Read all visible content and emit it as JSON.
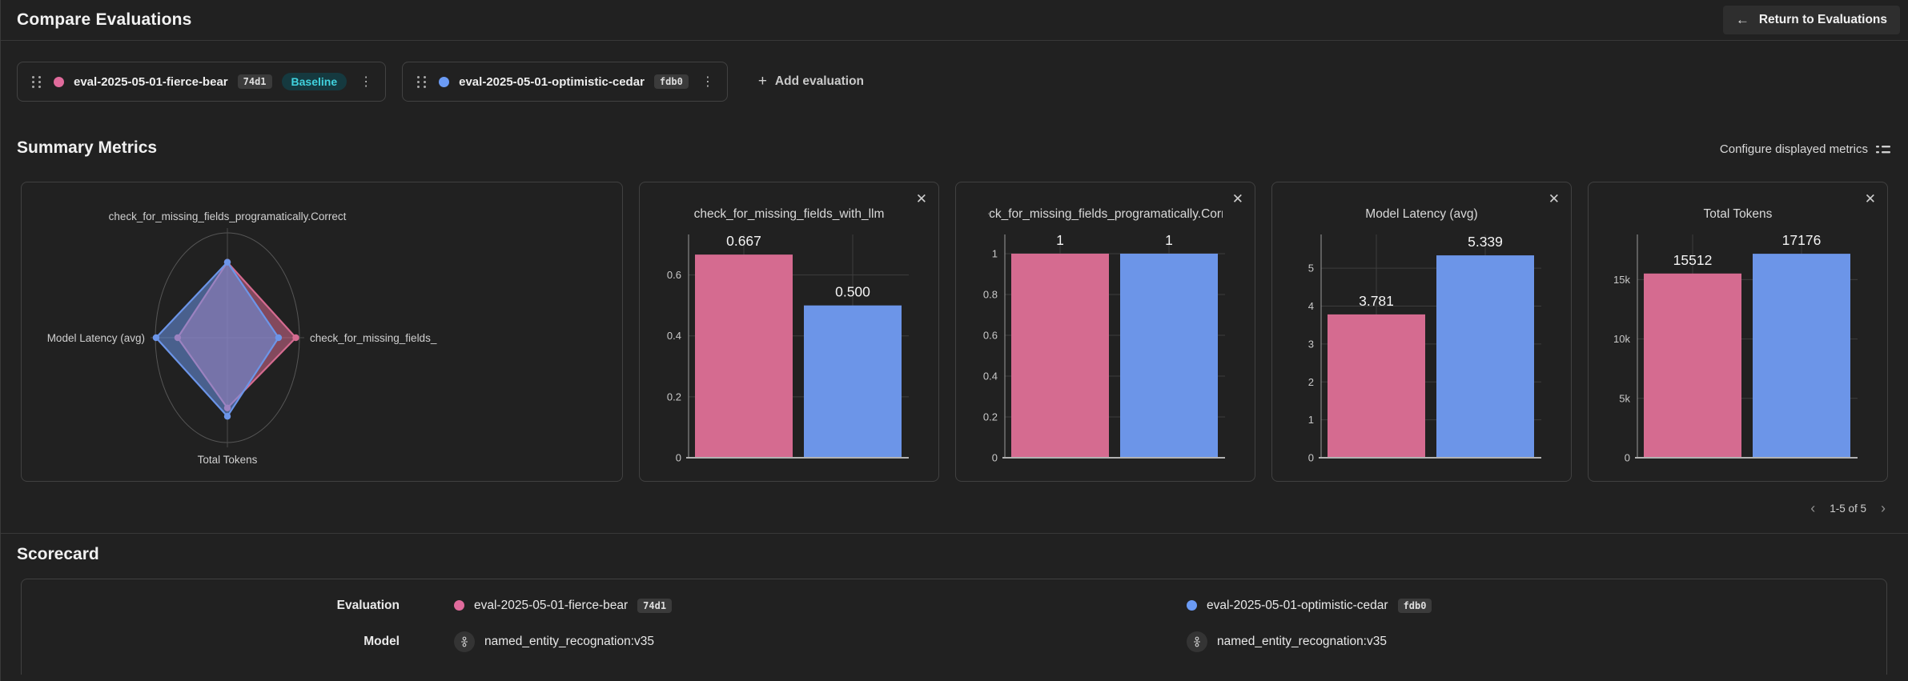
{
  "header": {
    "title": "Compare Evaluations",
    "return_label": "Return to Evaluations"
  },
  "icons": {
    "back_arrow": "←",
    "kebab": "⋮",
    "plus": "+",
    "close": "✕",
    "chevron_left": "‹",
    "chevron_right": "›"
  },
  "evaluations": [
    {
      "name": "eval-2025-05-01-fierce-bear",
      "hash": "74d1",
      "baseline": true,
      "color": "#E06B9C"
    },
    {
      "name": "eval-2025-05-01-optimistic-cedar",
      "hash": "fdb0",
      "baseline": false,
      "color": "#6B9BF5"
    }
  ],
  "baseline_label": "Baseline",
  "add_evaluation_label": "Add evaluation",
  "summary": {
    "title": "Summary Metrics",
    "configure_label": "Configure displayed metrics",
    "pagination": "1-5 of 5"
  },
  "scorecard": {
    "title": "Scorecard",
    "row_labels": {
      "evaluation": "Evaluation",
      "model": "Model"
    },
    "models": [
      "named_entity_recognation:v35",
      "named_entity_recognation:v35"
    ]
  },
  "chart_data": [
    {
      "type": "radar",
      "axes": [
        "check_for_missing_fields_programatically.Correct",
        "check_for_missing_fields_",
        "Total Tokens",
        "Model Latency (avg)"
      ],
      "axis_order": [
        "top",
        "right",
        "bottom",
        "left"
      ],
      "scale_note": "values are fraction of full radius (no numeric ticks shown)",
      "series": [
        {
          "name": "eval-2025-05-01-fierce-bear",
          "color": "#D56B90",
          "values": [
            0.72,
            0.95,
            0.67,
            0.69
          ]
        },
        {
          "name": "eval-2025-05-01-optimistic-cedar",
          "color": "#6C95E8",
          "values": [
            0.72,
            0.71,
            0.75,
            0.99
          ]
        }
      ]
    },
    {
      "type": "bar",
      "title": "check_for_missing_fields_with_llm",
      "categories": [
        "eval-2025-05-01-fierce-bear",
        "eval-2025-05-01-optimistic-cedar"
      ],
      "values": [
        0.667,
        0.5
      ],
      "value_labels": [
        "0.667",
        "0.500"
      ],
      "ticks": [
        {
          "v": 0,
          "label": "0"
        },
        {
          "v": 0.2,
          "label": "0.2"
        },
        {
          "v": 0.4,
          "label": "0.4"
        },
        {
          "v": 0.6,
          "label": "0.6"
        }
      ],
      "ymax": 0.733,
      "colors": [
        "#D56B90",
        "#6C95E8"
      ]
    },
    {
      "type": "bar",
      "title": "check_for_missing_fields_programatically.Correct",
      "categories": [
        "eval-2025-05-01-fierce-bear",
        "eval-2025-05-01-optimistic-cedar"
      ],
      "values": [
        1,
        1
      ],
      "value_labels": [
        "1",
        "1"
      ],
      "ticks": [
        {
          "v": 0,
          "label": "0"
        },
        {
          "v": 0.2,
          "label": "0.2"
        },
        {
          "v": 0.4,
          "label": "0.4"
        },
        {
          "v": 0.6,
          "label": "0.6"
        },
        {
          "v": 0.8,
          "label": "0.8"
        },
        {
          "v": 1,
          "label": "1"
        }
      ],
      "ymax": 1.094,
      "colors": [
        "#D56B90",
        "#6C95E8"
      ]
    },
    {
      "type": "bar",
      "title": "Model Latency (avg)",
      "categories": [
        "eval-2025-05-01-fierce-bear",
        "eval-2025-05-01-optimistic-cedar"
      ],
      "values": [
        3.781,
        5.339
      ],
      "value_labels": [
        "3.781",
        "5.339"
      ],
      "ticks": [
        {
          "v": 0,
          "label": "0"
        },
        {
          "v": 1,
          "label": "1"
        },
        {
          "v": 2,
          "label": "2"
        },
        {
          "v": 3,
          "label": "3"
        },
        {
          "v": 4,
          "label": "4"
        },
        {
          "v": 5,
          "label": "5"
        }
      ],
      "ymax": 5.89,
      "colors": [
        "#D56B90",
        "#6C95E8"
      ]
    },
    {
      "type": "bar",
      "title": "Total Tokens",
      "categories": [
        "eval-2025-05-01-fierce-bear",
        "eval-2025-05-01-optimistic-cedar"
      ],
      "values": [
        15512,
        17176
      ],
      "value_labels": [
        "15512",
        "17176"
      ],
      "ticks": [
        {
          "v": 0,
          "label": "0"
        },
        {
          "v": 5000,
          "label": "5k"
        },
        {
          "v": 10000,
          "label": "10k"
        },
        {
          "v": 15000,
          "label": "15k"
        }
      ],
      "ymax": 18800,
      "colors": [
        "#D56B90",
        "#6C95E8"
      ]
    }
  ]
}
